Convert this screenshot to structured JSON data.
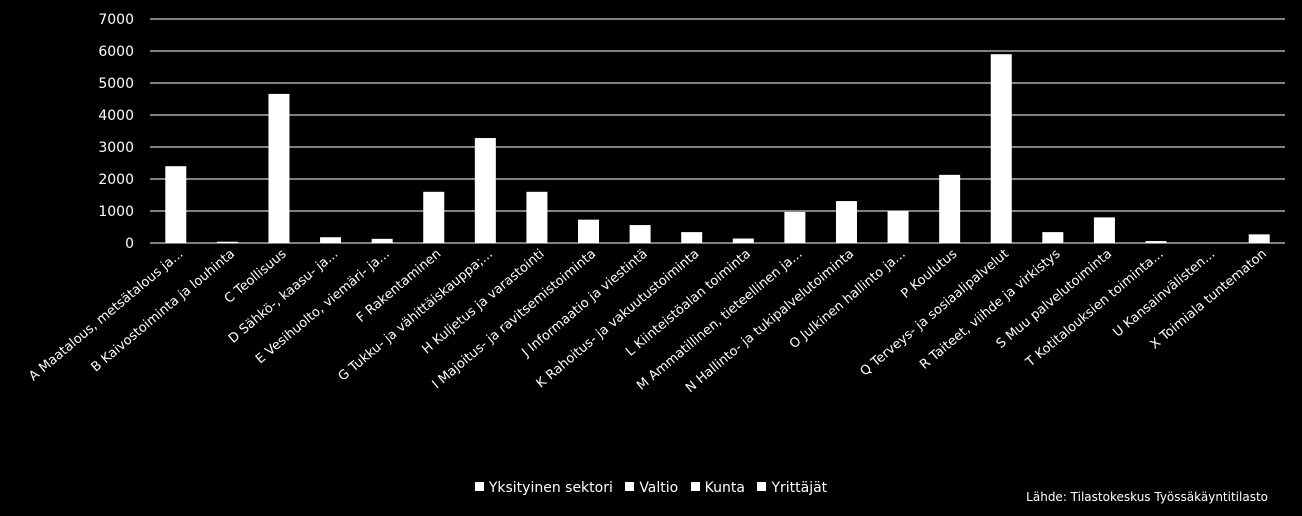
{
  "chart_data": {
    "type": "bar",
    "categories": [
      {
        "code": "A",
        "label": "Maatalous, metsätalous ja..."
      },
      {
        "code": "B",
        "label": "Kaivostoiminta ja louhinta"
      },
      {
        "code": "C",
        "label": "Teollisuus"
      },
      {
        "code": "D",
        "label": "Sähkö-, kaasu- ja..."
      },
      {
        "code": "E",
        "label": "Vesihuolto, viemäri- ja..."
      },
      {
        "code": "F",
        "label": "Rakentaminen"
      },
      {
        "code": "G",
        "label": "Tukku- ja vähittäiskauppa;..."
      },
      {
        "code": "H",
        "label": "Kuljetus ja varastointi"
      },
      {
        "code": "I",
        "label": "Majoitus- ja ravitsemistoiminta"
      },
      {
        "code": "J",
        "label": "Informaatio ja viestintä"
      },
      {
        "code": "K",
        "label": "Rahoitus- ja vakuutustoiminta"
      },
      {
        "code": "L",
        "label": "Kiinteistöalan toiminta"
      },
      {
        "code": "M",
        "label": "Ammatillinen, tieteellinen ja..."
      },
      {
        "code": "N",
        "label": "Hallinto- ja tukipalvelutoiminta"
      },
      {
        "code": "O",
        "label": "Julkinen hallinto ja..."
      },
      {
        "code": "P",
        "label": "Koulutus"
      },
      {
        "code": "Q",
        "label": "Terveys- ja sosiaalipalvelut"
      },
      {
        "code": "R",
        "label": "Taiteet, viihde ja virkistys"
      },
      {
        "code": "S",
        "label": "Muu palvelutoiminta"
      },
      {
        "code": "T",
        "label": "Kotitalouksien toiminta..."
      },
      {
        "code": "U",
        "label": "Kansainvälisten..."
      },
      {
        "code": "X",
        "label": "Toimiala tuntematon"
      }
    ],
    "values": [
      2400,
      40,
      4660,
      180,
      130,
      1600,
      3280,
      1600,
      730,
      560,
      340,
      140,
      970,
      1310,
      990,
      2130,
      5900,
      340,
      800,
      60,
      0,
      270
    ],
    "ylim": [
      0,
      7000
    ],
    "yticks": [
      0,
      1000,
      2000,
      3000,
      4000,
      5000,
      6000,
      7000
    ],
    "grid": true,
    "legend_position": "bottom",
    "colors": {
      "background": "#000000",
      "bars": "#ffffff",
      "grid": "#ffffff",
      "text": "#ffffff"
    },
    "legend": [
      "Yksityinen sektori",
      "Valtio",
      "Kunta",
      "Yrittäjät"
    ]
  },
  "source_note": "Lähde: Tilastokeskus Työssäkäyntitilasto"
}
